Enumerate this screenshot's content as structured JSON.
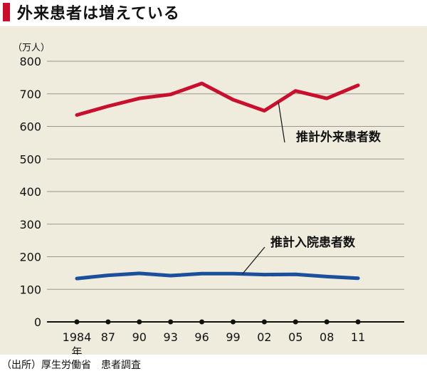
{
  "title": "外来患者は増えている",
  "source": "（出所）厚生労働省　患者調査",
  "colors": {
    "accent": "#c8102e",
    "panel": "#efebdd",
    "outpatient": "#c8102e",
    "inpatient": "#1a4f9c"
  },
  "chart_data": {
    "type": "line",
    "ylabel": "（万人）",
    "ylim": [
      0,
      800
    ],
    "yticks": [
      0,
      100,
      200,
      300,
      400,
      500,
      600,
      700,
      800
    ],
    "grid": true,
    "categories": [
      "1984",
      "87",
      "90",
      "93",
      "96",
      "99",
      "02",
      "05",
      "08",
      "11"
    ],
    "x_first_suffix": "年",
    "series": [
      {
        "name": "推計外来患者数",
        "color": "#c8102e",
        "values": [
          635,
          662,
          686,
          698,
          732,
          682,
          648,
          709,
          686,
          726
        ]
      },
      {
        "name": "推計入院患者数",
        "color": "#1a4f9c",
        "values": [
          133,
          143,
          149,
          142,
          148,
          148,
          145,
          146,
          139,
          134
        ]
      }
    ]
  }
}
